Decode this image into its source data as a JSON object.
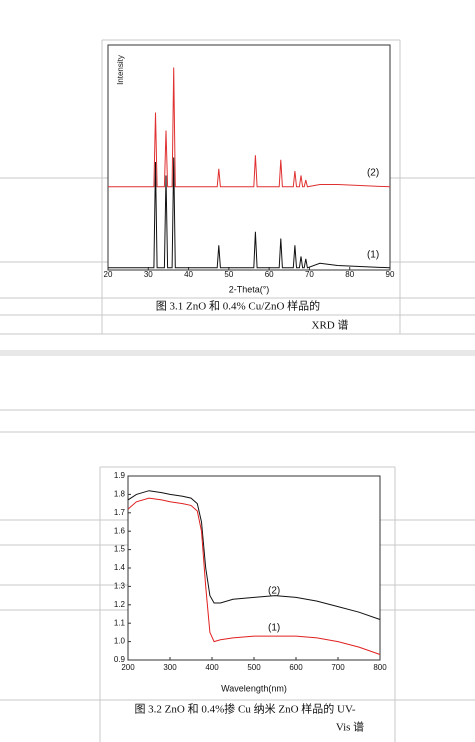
{
  "chart_data": [
    {
      "type": "line",
      "ylabel": "Intensity",
      "xlabel": "2-Theta(°)",
      "x": [
        20,
        30,
        31.4,
        31.8,
        32.2,
        34,
        34.4,
        34.8,
        35.9,
        36.3,
        36.7,
        47.1,
        47.5,
        47.9,
        56.2,
        56.6,
        57,
        62.5,
        62.9,
        63.3,
        66,
        66.4,
        66.8,
        67.5,
        67.9,
        68.3,
        68.7,
        69.1,
        69.5,
        72.6,
        77,
        90
      ],
      "series": [
        {
          "name": "(2)",
          "color": "#e03030",
          "values": [
            37,
            37,
            37,
            70,
            37,
            37,
            62,
            37,
            37,
            90,
            37,
            37,
            45,
            37,
            37,
            51,
            37,
            37,
            49,
            37,
            37,
            44,
            37,
            37,
            42,
            37,
            37,
            40,
            37,
            38,
            38,
            37
          ]
        },
        {
          "name": "(1)",
          "color": "#111111",
          "values": [
            1,
            1,
            1,
            48,
            1,
            1,
            42,
            1,
            1,
            50,
            1,
            1,
            11,
            1,
            1,
            17,
            1,
            1,
            14,
            1,
            1,
            11,
            1,
            1,
            6,
            1,
            1,
            5,
            1,
            3,
            2,
            1
          ]
        }
      ],
      "xlim": [
        20,
        90
      ],
      "xticks": [
        20,
        30,
        40,
        50,
        60,
        70,
        80,
        90
      ],
      "ylim": [
        0,
        100
      ],
      "caption_lines": [
        "图 3.1 ZnO  和  0.4% Cu/ZnO  样品的",
        "XRD  谱"
      ]
    },
    {
      "type": "line",
      "xlabel": "Wavelength(nm)",
      "x": [
        200,
        220,
        250,
        280,
        300,
        330,
        350,
        365,
        375,
        385,
        395,
        405,
        420,
        450,
        500,
        550,
        600,
        650,
        700,
        750,
        800
      ],
      "series": [
        {
          "name": "(2)",
          "color": "#111111",
          "values": [
            1.77,
            1.8,
            1.82,
            1.81,
            1.8,
            1.79,
            1.78,
            1.75,
            1.65,
            1.4,
            1.25,
            1.21,
            1.21,
            1.23,
            1.24,
            1.25,
            1.24,
            1.22,
            1.19,
            1.16,
            1.12
          ]
        },
        {
          "name": "(1)",
          "color": "#e02020",
          "values": [
            1.72,
            1.76,
            1.78,
            1.77,
            1.76,
            1.75,
            1.74,
            1.71,
            1.6,
            1.3,
            1.05,
            1.0,
            1.01,
            1.02,
            1.03,
            1.03,
            1.03,
            1.02,
            1.0,
            0.97,
            0.93
          ]
        }
      ],
      "xlim": [
        200,
        800
      ],
      "xticks": [
        200,
        300,
        400,
        500,
        600,
        700,
        800
      ],
      "ylim": [
        0.9,
        1.9
      ],
      "yticks": [
        0.9,
        {
          "value": 1,
          "label": "1.0"
        },
        1.1,
        1.2,
        1.3,
        1.4,
        1.5,
        1.6,
        1.7,
        1.8,
        1.9
      ],
      "caption_lines": [
        "图 3.2 ZnO  和  0.4%掺  Cu  纳米  ZnO  样品的  UV-",
        "Vis  谱"
      ]
    }
  ]
}
